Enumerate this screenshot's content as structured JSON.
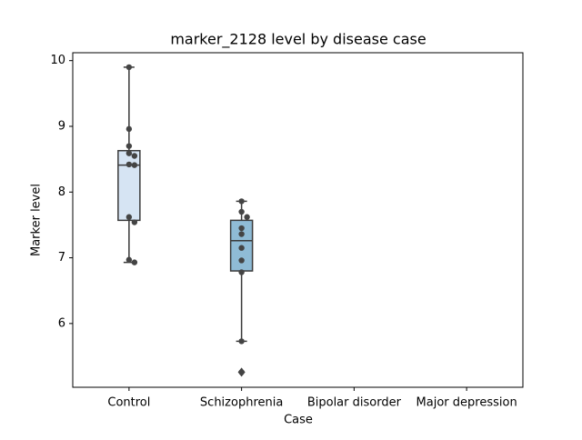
{
  "chart_data": {
    "type": "box",
    "title": "marker_2128 level by disease case",
    "x_label": "Case",
    "y_label": "Marker level",
    "categories": [
      "Control",
      "Schizophrenia",
      "Bipolar disorder",
      "Major depression"
    ],
    "boxes": [
      {
        "whislo": 6.93,
        "q1": 7.57,
        "med": 8.41,
        "q3": 8.63,
        "whishi": 9.9,
        "fliers": [],
        "color": "#d6e4f3",
        "points": [
          9.9,
          8.96,
          8.7,
          8.59,
          8.55,
          8.42,
          8.41,
          7.62,
          7.54,
          6.97,
          6.93
        ]
      },
      {
        "whislo": 5.73,
        "q1": 6.8,
        "med": 7.26,
        "q3": 7.57,
        "whishi": 7.86,
        "fliers": [
          5.26
        ],
        "color": "#8fbbd5",
        "points": [
          7.86,
          7.7,
          7.62,
          7.45,
          7.36,
          7.15,
          6.96,
          6.78,
          5.73,
          5.26
        ]
      },
      null,
      null
    ],
    "ylim": [
      5.03,
      10.12
    ],
    "yticks": [
      6,
      7,
      8,
      9,
      10
    ]
  }
}
